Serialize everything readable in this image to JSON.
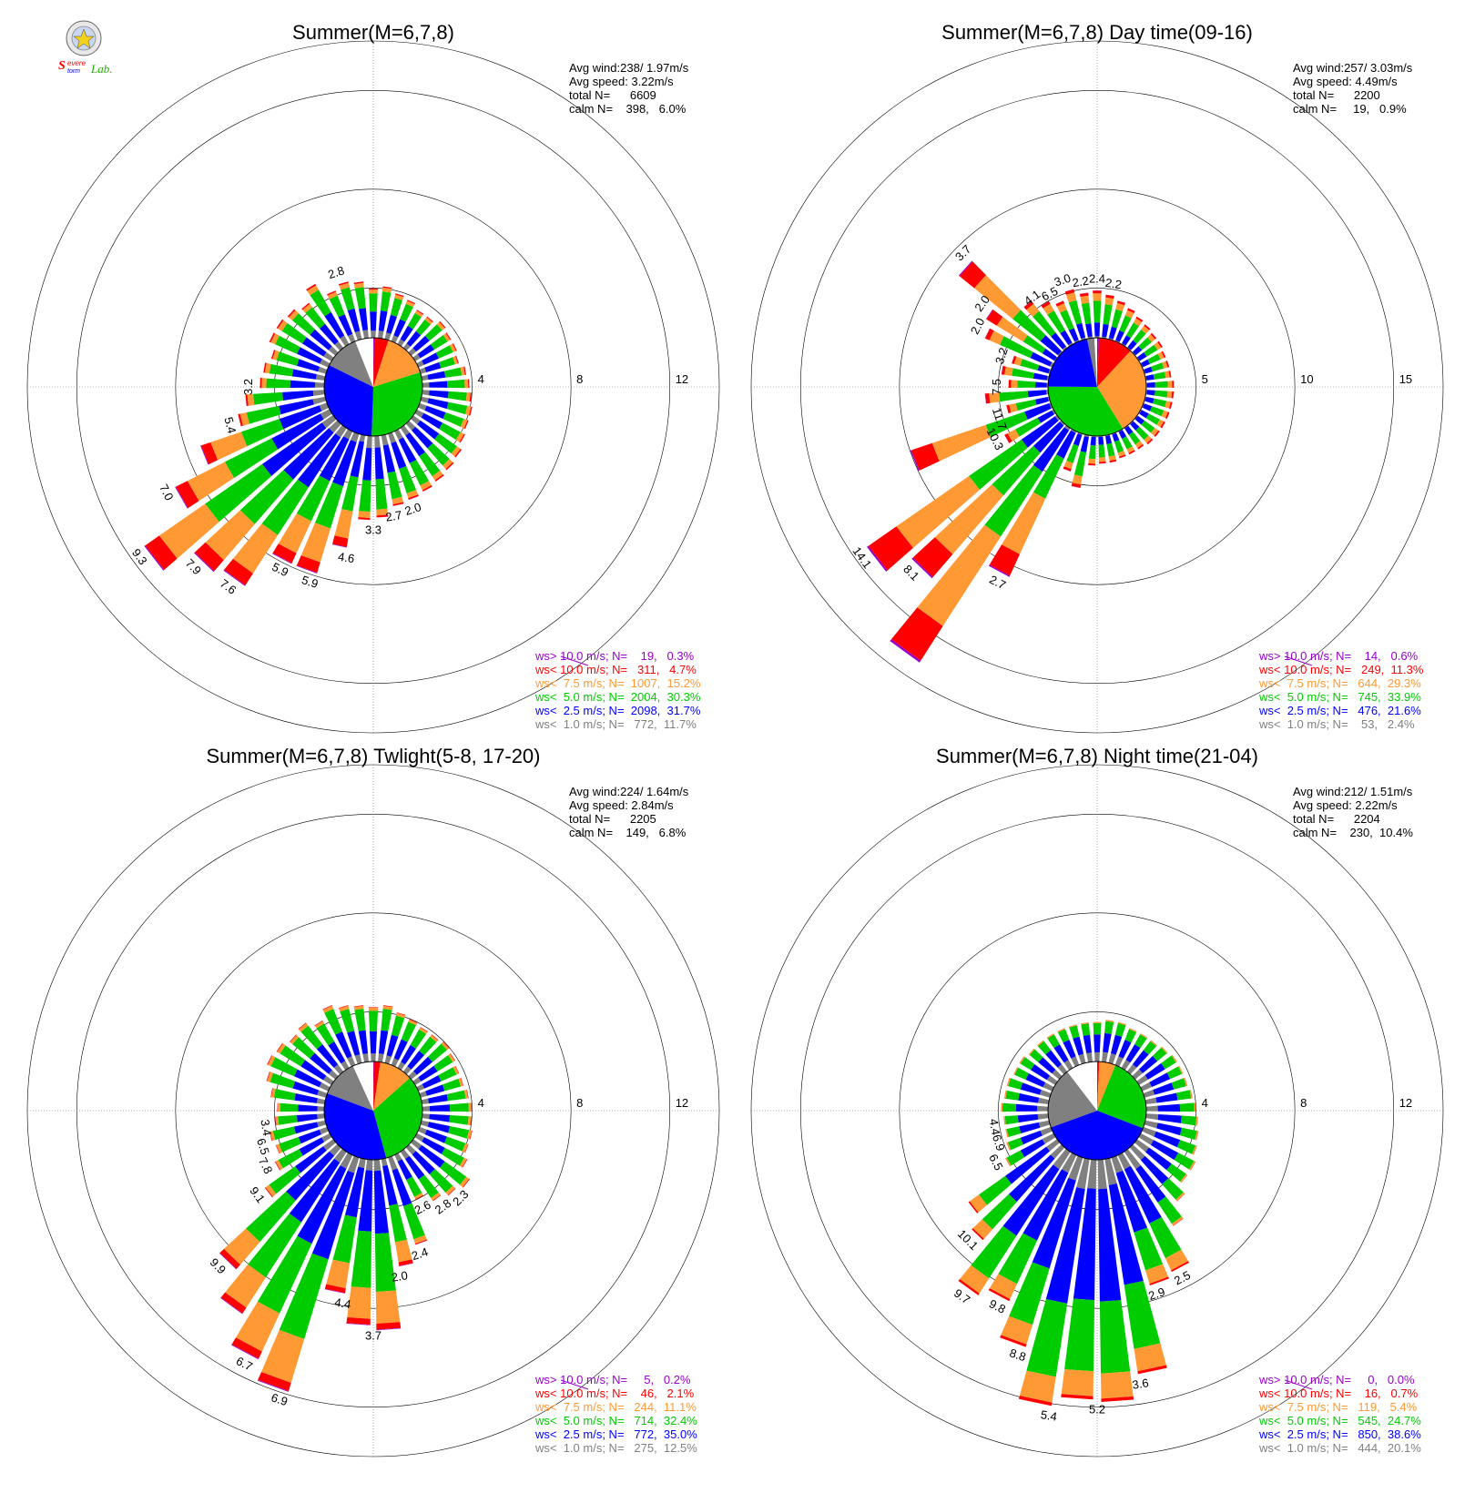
{
  "logo": {
    "text1": "Severe",
    "text2": "Storm",
    "text3": "Lab."
  },
  "colors": {
    "ws_gt10": "#9900cc",
    "ws_lt10": "#ff0000",
    "ws_lt7_5": "#ff9933",
    "ws_lt5": "#00cc00",
    "ws_lt2_5": "#0000ff",
    "ws_lt1": "#808080",
    "calm": "#ffffff"
  },
  "chart_data": [
    {
      "type": "wind_rose",
      "title": "Summer(M=6,7,8)",
      "stats": [
        "Avg wind:238/ 1.97m/s",
        "Avg speed: 3.22m/s",
        "total N=      6609",
        "calm N=    398,   6.0%"
      ],
      "ring_labels": [
        "4",
        "8",
        "12"
      ],
      "rmax": 14,
      "labeled_sectors": [
        {
          "dir": 342,
          "value": "2.8"
        },
        {
          "dir": 270,
          "value": "3.2"
        },
        {
          "dir": 255,
          "value": "5.4"
        },
        {
          "dir": 243,
          "value": "7.0"
        },
        {
          "dir": 234,
          "value": "9.3"
        },
        {
          "dir": 225,
          "value": "7.9"
        },
        {
          "dir": 216,
          "value": "7.6"
        },
        {
          "dir": 207,
          "value": "5.9"
        },
        {
          "dir": 198,
          "value": "5.9"
        },
        {
          "dir": 189,
          "value": "4.6"
        },
        {
          "dir": 180,
          "value": "3.3"
        },
        {
          "dir": 171,
          "value": "2.7"
        },
        {
          "dir": 162,
          "value": "2.0"
        }
      ],
      "sector_totals": [
        2.0,
        2.1,
        1.9,
        1.8,
        1.6,
        1.6,
        1.8,
        1.7,
        1.7,
        1.6,
        1.8,
        1.9,
        2.0,
        2.1,
        2.1,
        2.2,
        2.4,
        2.5,
        2.6,
        2.7,
        2.8,
        2.9,
        3.3,
        3.4,
        4.6,
        5.9,
        5.9,
        7.6,
        7.9,
        9.3,
        7.0,
        5.4,
        3.6,
        3.2,
        2.6,
        2.5,
        2.3,
        2.6,
        2.6,
        2.5,
        2.3,
        2.8,
        2.2,
        2.4,
        2.3
      ],
      "legend": [
        "ws> 10.0 m/s; N=    19,   0.3%",
        "ws< 10.0 m/s; N=   311,   4.7%",
        "ws<  7.5 m/s; N=  1007,  15.2%",
        "ws<  5.0 m/s; N=  2004,  30.3%",
        "ws<  2.5 m/s; N=  2098,  31.7%",
        "ws<  1.0 m/s; N=   772,  11.7%"
      ],
      "pie": [
        0.3,
        4.7,
        15.2,
        30.3,
        31.7,
        11.7,
        6.0
      ]
    },
    {
      "type": "wind_rose",
      "title": "Summer(M=6,7,8) Day time(09-16)",
      "stats": [
        "Avg wind:257/ 3.03m/s",
        "Avg speed: 4.49m/s",
        "total N=      2200",
        "calm N=     19,   0.9%"
      ],
      "ring_labels": [
        "5",
        "10",
        "15"
      ],
      "rmax": 17.5,
      "labeled_sectors": [
        {
          "dir": 333,
          "value": "6.5"
        },
        {
          "dir": 342,
          "value": "3.0"
        },
        {
          "dir": 351,
          "value": "2.2"
        },
        {
          "dir": 0,
          "value": "2.4"
        },
        {
          "dir": 9,
          "value": "2.2"
        },
        {
          "dir": 324,
          "value": "4.1"
        },
        {
          "dir": 315,
          "value": "3.7"
        },
        {
          "dir": 306,
          "value": "2.0"
        },
        {
          "dir": 288,
          "value": "3.2"
        },
        {
          "dir": 297,
          "value": "2.0"
        },
        {
          "dir": 270,
          "value": "7.5"
        },
        {
          "dir": 252,
          "value": "11.7"
        },
        {
          "dir": 243,
          "value": "10.3"
        },
        {
          "dir": 234,
          "value": "14.1"
        },
        {
          "dir": 225,
          "value": "8.1"
        },
        {
          "dir": 207,
          "value": "2.7"
        }
      ],
      "sector_totals": [
        2.4,
        2.2,
        2.0,
        1.8,
        1.6,
        1.5,
        1.4,
        1.4,
        1.3,
        1.3,
        1.3,
        1.4,
        1.4,
        1.4,
        1.4,
        1.4,
        1.4,
        1.4,
        1.3,
        1.3,
        1.3,
        1.4,
        1.4,
        1.5,
        2.7,
        2.0,
        8.1,
        14.1,
        10.3,
        11.7,
        2.8,
        7.5,
        2.2,
        3.2,
        2.0,
        2.4,
        2.0,
        3.7,
        4.1,
        6.5,
        3.0,
        2.5,
        2.2,
        2.6,
        2.3
      ],
      "legend": [
        "ws> 10.0 m/s; N=    14,   0.6%",
        "ws< 10.0 m/s; N=   249,  11.3%",
        "ws<  7.5 m/s; N=   644,  29.3%",
        "ws<  5.0 m/s; N=   745,  33.9%",
        "ws<  2.5 m/s; N=   476,  21.6%",
        "ws<  1.0 m/s; N=    53,   2.4%"
      ],
      "pie": [
        0.6,
        11.3,
        29.3,
        33.9,
        21.6,
        2.4,
        0.9
      ]
    },
    {
      "type": "wind_rose",
      "title": "Summer(M=6,7,8) Twlight(5-8, 17-20)",
      "stats": [
        "Avg wind:224/ 1.64m/s",
        "Avg speed: 2.84m/s",
        "total N=      2205",
        "calm N=    149,   6.8%"
      ],
      "ring_labels": [
        "4",
        "8",
        "12"
      ],
      "rmax": 14,
      "labeled_sectors": [
        {
          "dir": 261,
          "value": "3.4"
        },
        {
          "dir": 252,
          "value": "6.5"
        },
        {
          "dir": 243,
          "value": "7.8"
        },
        {
          "dir": 234,
          "value": "9.1"
        },
        {
          "dir": 225,
          "value": "9.9"
        },
        {
          "dir": 207,
          "value": "6.7"
        },
        {
          "dir": 198,
          "value": "6.9"
        },
        {
          "dir": 189,
          "value": "4.4"
        },
        {
          "dir": 180,
          "value": "3.7"
        },
        {
          "dir": 171,
          "value": "2.0"
        },
        {
          "dir": 162,
          "value": "2.4"
        },
        {
          "dir": 153,
          "value": "2.6"
        },
        {
          "dir": 144,
          "value": "2.8"
        },
        {
          "dir": 135,
          "value": "2.3"
        }
      ],
      "sector_totals": [
        2.2,
        2.3,
        2.1,
        2.0,
        1.9,
        1.9,
        2.0,
        1.9,
        1.8,
        1.8,
        1.9,
        2.0,
        2.0,
        2.1,
        2.1,
        2.3,
        2.8,
        2.6,
        2.4,
        2.0,
        3.7,
        4.4,
        6.9,
        6.7,
        5.5,
        9.9,
        9.1,
        7.8,
        6.5,
        3.4,
        2.5,
        2.2,
        2.3,
        2.0,
        1.9,
        2.2,
        2.5,
        2.7,
        2.6,
        2.4,
        2.5,
        2.2,
        2.6,
        2.4,
        2.3
      ],
      "legend": [
        "ws> 10.0 m/s; N=     5,   0.2%",
        "ws< 10.0 m/s; N=    46,   2.1%",
        "ws<  7.5 m/s; N=   244,  11.1%",
        "ws<  5.0 m/s; N=   714,  32.4%",
        "ws<  2.5 m/s; N=   772,  35.0%",
        "ws<  1.0 m/s; N=   275,  12.5%"
      ],
      "pie": [
        0.2,
        2.1,
        11.1,
        32.4,
        35.0,
        12.5,
        6.8
      ]
    },
    {
      "type": "wind_rose",
      "title": "Summer(M=6,7,8) Night time(21-04)",
      "stats": [
        "Avg wind:212/ 1.51m/s",
        "Avg speed: 2.22m/s",
        "total N=      2204",
        "calm N=    230,  10.4%"
      ],
      "ring_labels": [
        "4",
        "8",
        "12"
      ],
      "rmax": 14,
      "labeled_sectors": [
        {
          "dir": 261,
          "value": "4.4"
        },
        {
          "dir": 252,
          "value": "6.9"
        },
        {
          "dir": 243,
          "value": "6.5"
        },
        {
          "dir": 225,
          "value": "10.1"
        },
        {
          "dir": 216,
          "value": "9.7"
        },
        {
          "dir": 207,
          "value": "9.8"
        },
        {
          "dir": 198,
          "value": "8.8"
        },
        {
          "dir": 189,
          "value": "5.4"
        },
        {
          "dir": 180,
          "value": "5.2"
        },
        {
          "dir": 171,
          "value": "3.6"
        },
        {
          "dir": 162,
          "value": "2.9"
        },
        {
          "dir": 153,
          "value": "2.5"
        }
      ],
      "sector_totals": [
        1.6,
        1.7,
        1.7,
        1.6,
        1.6,
        1.6,
        1.7,
        1.8,
        1.8,
        1.8,
        1.9,
        2.0,
        2.1,
        2.2,
        2.3,
        2.5,
        2.5,
        2.9,
        3.6,
        5.2,
        5.4,
        8.8,
        9.8,
        9.7,
        10.1,
        8.0,
        6.5,
        6.9,
        5.0,
        4.4,
        2.2,
        1.9,
        1.8,
        1.8,
        1.9,
        1.8,
        1.8,
        1.7,
        1.7,
        1.6,
        1.6,
        1.6,
        1.6,
        1.6,
        1.6
      ],
      "legend": [
        "ws> 10.0 m/s; N=     0,   0.0%",
        "ws< 10.0 m/s; N=    16,   0.7%",
        "ws<  7.5 m/s; N=   119,   5.4%",
        "ws<  5.0 m/s; N=   545,  24.7%",
        "ws<  2.5 m/s; N=   850,  38.6%",
        "ws<  1.0 m/s; N=   444,  20.1%"
      ],
      "pie": [
        0.0,
        0.7,
        5.4,
        24.7,
        38.6,
        20.1,
        10.4
      ]
    }
  ]
}
